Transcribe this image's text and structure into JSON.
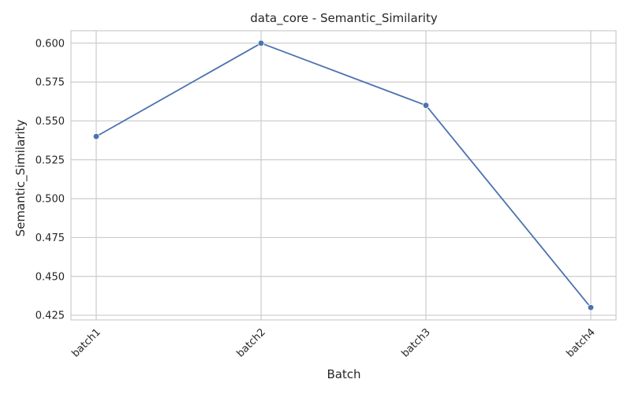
{
  "chart_data": {
    "type": "line",
    "title": "data_core - Semantic_Similarity",
    "xlabel": "Batch",
    "ylabel": "Semantic_Similarity",
    "categories": [
      "batch1",
      "batch2",
      "batch3",
      "batch4"
    ],
    "series": [
      {
        "values": [
          0.54,
          0.6,
          0.56,
          0.43
        ]
      }
    ],
    "ylim": [
      0.422,
      0.608
    ],
    "yticks": [
      "0.425",
      "0.450",
      "0.475",
      "0.500",
      "0.525",
      "0.550",
      "0.575",
      "0.600"
    ],
    "grid": true,
    "marker": "circle",
    "colors": {
      "line": "#4c72b0",
      "grid": "#cccccc",
      "frame": "#cccccc",
      "background": "#ffffff",
      "text": "#262626"
    }
  }
}
